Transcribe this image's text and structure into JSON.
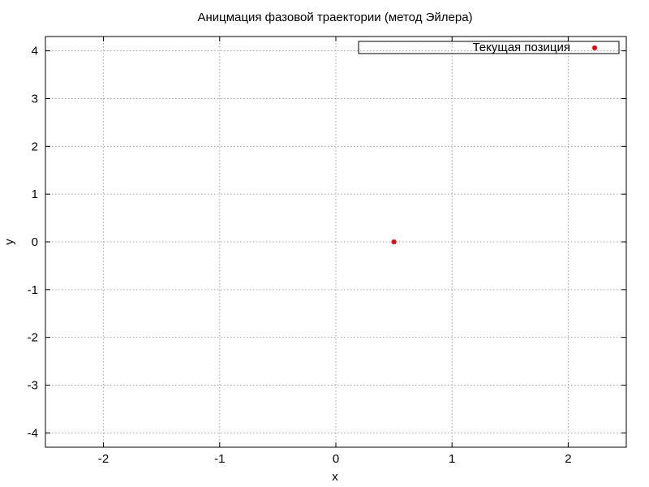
{
  "chart_data": {
    "type": "scatter",
    "title": "Аницмация фазовой траектории (метод Эйлера)",
    "xlabel": "x",
    "ylabel": "y",
    "xlim": [
      -2.5,
      2.5
    ],
    "ylim": [
      -4.3,
      4.3
    ],
    "xticks": [
      -2,
      -1,
      0,
      1,
      2
    ],
    "yticks": [
      -4,
      -3,
      -2,
      -1,
      0,
      1,
      2,
      3,
      4
    ],
    "grid": true,
    "legend_position": "top-right",
    "series": [
      {
        "name": "Текущая позиция",
        "color": "#e00000",
        "points": [
          {
            "x": 0.5,
            "y": 0.0
          }
        ]
      }
    ]
  }
}
